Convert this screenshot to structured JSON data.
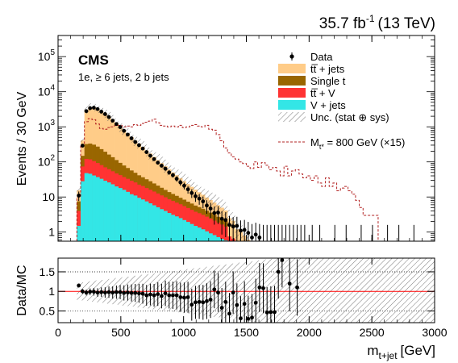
{
  "chart_data": {
    "type": "bar",
    "luminosity": "35.7 fb",
    "luminosity_sup": "-1",
    "energy": "(13 TeV)",
    "experiment": "CMS",
    "channel": "1e, ≥ 6 jets, 2 b jets",
    "ylabel": "Events / 30 GeV",
    "ratio_ylabel": "Data/MC",
    "xlabel_main": "m",
    "xlabel_sub": "t+jet",
    "xlabel_unit": "[GeV]",
    "xlim": [
      0,
      3000
    ],
    "ylim": [
      0.55,
      400000
    ],
    "ylog": true,
    "ratio_ylim": [
      0.2,
      1.85
    ],
    "x_ticks": [
      0,
      500,
      1000,
      1500,
      2000,
      2500,
      3000
    ],
    "y_ticks": [
      {
        "value": 10,
        "label": "10"
      },
      {
        "value": 100,
        "base": "10",
        "exp": "2"
      },
      {
        "value": 1000,
        "base": "10",
        "exp": "3"
      },
      {
        "value": 10000,
        "base": "10",
        "exp": "4"
      },
      {
        "value": 100000,
        "base": "10",
        "exp": "5"
      }
    ],
    "y_tick_one": "1",
    "ratio_ticks": [
      0.5,
      1,
      1.5
    ],
    "ratio_tick_labels": [
      "0.5",
      "1",
      "1.5"
    ],
    "bin_width": 30,
    "bin_start": 150,
    "legend_position": "top-right",
    "legend": [
      {
        "key": "data",
        "label": "Data"
      },
      {
        "key": "ttjets",
        "label": "tt̅ + jets",
        "color": "#ffcc88"
      },
      {
        "key": "singlet",
        "label": "Single t",
        "color": "#996600"
      },
      {
        "key": "ttv",
        "label": "tt̅ + V",
        "color": "#ff3333"
      },
      {
        "key": "vjets",
        "label": "V + jets",
        "color": "#33e6e6"
      },
      {
        "key": "unc",
        "label": "Unc. (stat ⊕ sys)"
      }
    ],
    "signal_label": "M",
    "signal_label_sub": "t*",
    "signal_label_rest": " = 800 GeV (×15)",
    "series": [
      {
        "key": "ttjets",
        "color": "#ffcc88",
        "values": [
          8,
          260,
          2700,
          3300,
          3300,
          3000,
          2600,
          2200,
          1800,
          1450,
          1150,
          900,
          720,
          570,
          450,
          360,
          290,
          230,
          180,
          145,
          115,
          92,
          74,
          60,
          48,
          38,
          31,
          25,
          20,
          16,
          13,
          10.5,
          8.5,
          7,
          5.6,
          4.6,
          3.8,
          3.1,
          2.6,
          2.1,
          1.75,
          1.45,
          1.2,
          1,
          0.8,
          0.6
        ]
      },
      {
        "key": "singlet",
        "color": "#996600",
        "values": [
          3.5,
          75,
          200,
          215,
          205,
          180,
          150,
          125,
          100,
          82,
          66,
          52,
          42,
          34,
          28,
          23,
          19,
          16,
          14,
          12,
          10,
          8.5,
          7.2,
          6.1,
          5.2,
          4.5,
          3.9,
          3.3,
          2.9,
          2.5,
          2.2,
          1.9,
          1.7,
          1.5,
          1.3,
          1.15,
          1,
          0.85,
          0.72,
          0.62
        ]
      },
      {
        "key": "ttv",
        "color": "#ff3333",
        "values": [
          2.5,
          46,
          74,
          72,
          64,
          56,
          48,
          41,
          36,
          31,
          27,
          24,
          21,
          19,
          17,
          15,
          13,
          12,
          10.5,
          9.5,
          8.5,
          7.5,
          6.6,
          5.8,
          5.1,
          4.6,
          4.1,
          3.7,
          3.3,
          2.9,
          2.6,
          2.3,
          2.1,
          1.9,
          1.7,
          1.5,
          1.3,
          1.15,
          1,
          0.85,
          0.75,
          0.65
        ]
      },
      {
        "key": "vjets",
        "color": "#33e6e6",
        "values": [
          1.5,
          28,
          48,
          46,
          41,
          37,
          33,
          29,
          26,
          23,
          20,
          18,
          16,
          14,
          12,
          11,
          9.5,
          8.5,
          7.5,
          6.6,
          5.8,
          5.1,
          4.5,
          4,
          3.5,
          3.1,
          2.8,
          2.5,
          2.2,
          1.95,
          1.7,
          1.5,
          1.35,
          1.2,
          1.05,
          0.92,
          0.82,
          0.72,
          0.64,
          0.58
        ]
      }
    ],
    "signal": {
      "key": "signal",
      "color": "#b22222",
      "x": [
        150,
        180,
        210,
        240,
        270,
        300,
        330,
        360,
        390,
        420,
        450,
        480,
        510,
        540,
        570,
        600,
        630,
        660,
        690,
        720,
        750,
        780,
        810,
        840,
        870,
        900,
        930,
        960,
        990,
        1020,
        1050,
        1080,
        1110,
        1140,
        1170,
        1200,
        1230,
        1260,
        1290,
        1320,
        1350,
        1380,
        1410,
        1440,
        1470,
        1500,
        1530,
        1560,
        1590,
        1620,
        1650,
        1680,
        1710,
        1740,
        1770,
        1800,
        1830,
        1860,
        1890,
        1920,
        1950,
        1980,
        2010,
        2040,
        2070,
        2100,
        2130,
        2160,
        2190,
        2220,
        2250,
        2280,
        2310,
        2340,
        2370,
        2400,
        2430,
        2460,
        2490,
        2520
      ],
      "values": [
        10,
        300,
        1400,
        1700,
        1600,
        1200,
        900,
        850,
        950,
        1000,
        1100,
        1100,
        1000,
        1050,
        1000,
        1150,
        1100,
        1250,
        1350,
        1450,
        1650,
        1300,
        1100,
        1050,
        1000,
        1050,
        1000,
        1100,
        950,
        1000,
        1100,
        1150,
        1050,
        1000,
        1100,
        850,
        800,
        600,
        400,
        250,
        180,
        140,
        120,
        100,
        90,
        75,
        65,
        100,
        70,
        95,
        80,
        60,
        70,
        55,
        40,
        75,
        40,
        55,
        60,
        45,
        35,
        40,
        30,
        40,
        25,
        20,
        35,
        20,
        25,
        15,
        18,
        20,
        15,
        12,
        8,
        5,
        3,
        3,
        3,
        3
      ]
    },
    "data": {
      "x": [
        165,
        195,
        225,
        255,
        285,
        315,
        345,
        375,
        405,
        435,
        465,
        495,
        525,
        555,
        585,
        615,
        645,
        675,
        705,
        735,
        765,
        795,
        825,
        855,
        885,
        915,
        945,
        975,
        1005,
        1035,
        1065,
        1095,
        1125,
        1155,
        1185,
        1215,
        1245,
        1275,
        1305,
        1335,
        1365,
        1395,
        1425,
        1455,
        1485,
        1515,
        1545,
        1575,
        1605,
        1635,
        1665,
        1695,
        1725,
        1755,
        1785,
        1815,
        1845,
        1875,
        1905,
        1935,
        1965,
        2025,
        2085,
        2205,
        2295,
        2415,
        2505,
        2625,
        2715,
        2835
      ],
      "y": [
        11,
        290,
        2800,
        3400,
        3500,
        3200,
        2700,
        2300,
        1900,
        1500,
        1200,
        980,
        770,
        600,
        470,
        370,
        300,
        240,
        190,
        150,
        120,
        95,
        78,
        64,
        50,
        42,
        33,
        26,
        21,
        16.5,
        13,
        10.5,
        9,
        7.5,
        5.7,
        4.7,
        3.5,
        3.6,
        2.4,
        2.2,
        1.6,
        1.45,
        1.5,
        1.1,
        1.15,
        0.95,
        0.7,
        0.85,
        0.7,
        0.6,
        0.6,
        0.6,
        0.6,
        0.6,
        0.6,
        0.6,
        0.6,
        0.6,
        0.6,
        0.6,
        0.6,
        0.6,
        0.6,
        0.6,
        0.6,
        0.6,
        0.6,
        0.6,
        0.6,
        0.6
      ]
    },
    "ratio": {
      "x": [
        165,
        195,
        225,
        255,
        285,
        315,
        345,
        375,
        405,
        435,
        465,
        495,
        525,
        555,
        585,
        615,
        645,
        675,
        705,
        735,
        765,
        795,
        825,
        855,
        885,
        915,
        945,
        975,
        1005,
        1035,
        1065,
        1095,
        1125,
        1155,
        1185,
        1215,
        1245,
        1275,
        1305,
        1335,
        1365,
        1395,
        1425,
        1455,
        1485,
        1515,
        1545,
        1575,
        1605,
        1635,
        1665,
        1695,
        1725,
        1755,
        1785,
        1845,
        1905
      ],
      "y": [
        1.15,
        1,
        0.97,
        0.99,
        0.99,
        0.97,
        0.98,
        0.97,
        0.98,
        0.97,
        0.98,
        0.98,
        0.96,
        0.97,
        0.96,
        0.96,
        0.95,
        0.94,
        0.9,
        0.92,
        0.9,
        0.93,
        0.88,
        0.95,
        0.9,
        0.9,
        0.9,
        0.85,
        0.84,
        0.85,
        0.66,
        0.72,
        0.73,
        0.72,
        0.75,
        0.79,
        1.05,
        0.97,
        0.58,
        0.73,
        0.43,
        0.97,
        0.65,
        0.31,
        0.68,
        0.3,
        0.33,
        0.71,
        1.1,
        1.08,
        0.46,
        0.47,
        0.47,
        1.5,
        1.8,
        1.2,
        1.1
      ]
    }
  }
}
